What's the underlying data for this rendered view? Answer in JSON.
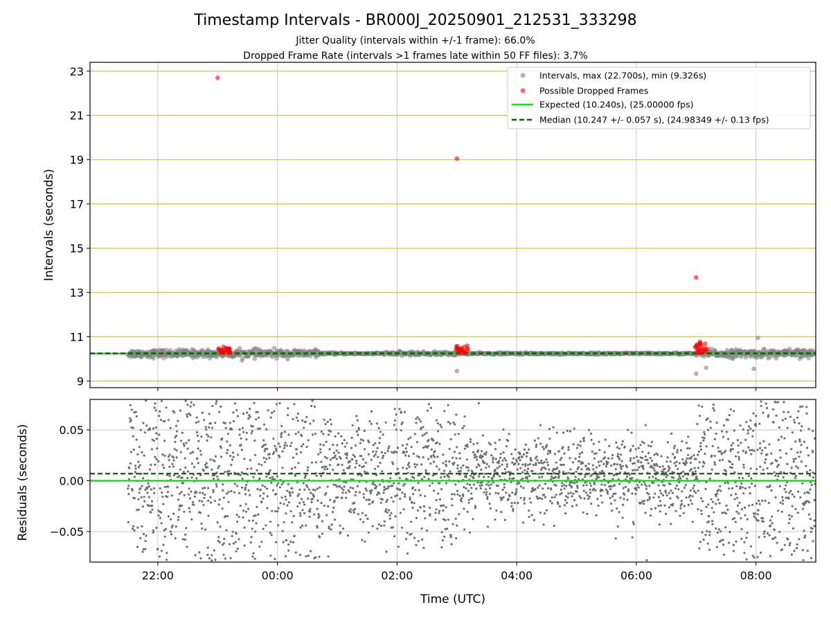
{
  "chart_data": {
    "type": "scatter",
    "title": "Timestamp Intervals - BR000J_20250901_212531_333298",
    "subtitle_lines": [
      "Jitter Quality (intervals within +/-1 frame): 66.0%",
      "Dropped Frame Rate (intervals >1 frames late within 50 FF files): 3.7%"
    ],
    "xlabel": "Time (UTC)",
    "x_start": "2025-09-01T20:52:00",
    "x_end": "2025-09-02T09:00:00",
    "x_ticks": [
      {
        "label": "22:00",
        "time": "2025-09-01T22:00"
      },
      {
        "label": "00:00",
        "time": "2025-09-02T00:00"
      },
      {
        "label": "02:00",
        "time": "2025-09-02T02:00"
      },
      {
        "label": "04:00",
        "time": "2025-09-02T04:00"
      },
      {
        "label": "06:00",
        "time": "2025-09-02T06:00"
      },
      {
        "label": "08:00",
        "time": "2025-09-02T08:00"
      }
    ],
    "top_panel": {
      "ylabel": "Intervals (seconds)",
      "ylim": [
        8.7,
        23.4
      ],
      "yticks": [
        9,
        11,
        13,
        15,
        17,
        19,
        21,
        23
      ],
      "expected_interval": 10.24,
      "median_interval": 10.247,
      "dropped_outliers": [
        {
          "time": "2025-09-01T23:00",
          "value": 22.7
        },
        {
          "time": "2025-09-02T03:00",
          "value": 19.05
        },
        {
          "time": "2025-09-02T07:00",
          "value": 13.68
        }
      ],
      "dropped_clusters": [
        {
          "center": "2025-09-01T23:07",
          "spread_min": 6,
          "max": 10.55
        },
        {
          "center": "2025-09-02T03:05",
          "spread_min": 6,
          "max": 10.6
        },
        {
          "center": "2025-09-02T07:05",
          "spread_min": 6,
          "max": 10.8
        }
      ],
      "low_outliers": [
        {
          "time": "2025-09-02T03:00",
          "value": 9.45
        },
        {
          "time": "2025-09-02T07:00",
          "value": 9.33
        },
        {
          "time": "2025-09-02T07:10",
          "value": 9.6
        },
        {
          "time": "2025-09-02T07:58",
          "value": 9.55
        }
      ],
      "high_outliers": [
        {
          "time": "2025-09-02T08:02",
          "value": 10.95
        }
      ]
    },
    "bottom_panel": {
      "ylabel": "Residuals (seconds)",
      "ylim": [
        -0.08,
        0.08
      ],
      "yticks": [
        -0.05,
        0.0,
        0.05
      ],
      "ytick_labels": [
        "−0.05",
        "0.00",
        "0.05"
      ],
      "expected_residual": 0.0,
      "median_residual": 0.007
    },
    "data_start": "2025-09-01T21:30",
    "data_end": "2025-09-02T09:00",
    "legend": {
      "placement": "upper-right",
      "entries": [
        {
          "label": "Intervals, max (22.700s), min (9.326s)",
          "kind": "marker",
          "color": "#808080"
        },
        {
          "label": "Possible Dropped Frames",
          "kind": "marker",
          "color": "#ff0000"
        },
        {
          "label": "Expected (10.240s), (25.00000 fps)",
          "kind": "line",
          "color": "#00ee00"
        },
        {
          "label": "Median (10.247 +/- 0.057 s), (24.98349 +/- 0.13 fps)",
          "kind": "dashed",
          "color": "#006400"
        }
      ]
    },
    "colors": {
      "interval": "#808080",
      "dropped": "#ff0000",
      "expected": "#00ee00",
      "median": "#006400",
      "hgrid_top": "#d4b96a",
      "grid": "#c8c8c8"
    },
    "grid": true
  }
}
